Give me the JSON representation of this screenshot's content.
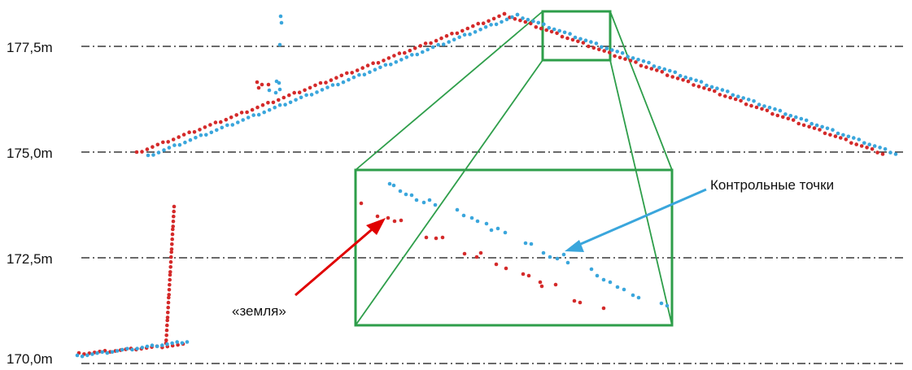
{
  "chart_data": {
    "type": "scatter",
    "title": "",
    "xlabel": "",
    "ylabel": "",
    "ylim": [
      170.0,
      178.5
    ],
    "y_ticks": [
      "177,5m",
      "175,0m",
      "172,5m",
      "170,0m"
    ],
    "y_tick_values": [
      177.5,
      175.0,
      172.5,
      170.0
    ],
    "grid": "dash-dot horizontal lines at each tick",
    "annotations": [
      {
        "text": "«земля»",
        "color": "#e00000"
      },
      {
        "text": "Контрольные точки",
        "color": "#3aa6dc"
      }
    ],
    "colors": {
      "red_series": "#d42a2a",
      "blue_series": "#3aa6dc",
      "zoom_box": "#2e9e4a",
      "grid": "#111111"
    }
  }
}
